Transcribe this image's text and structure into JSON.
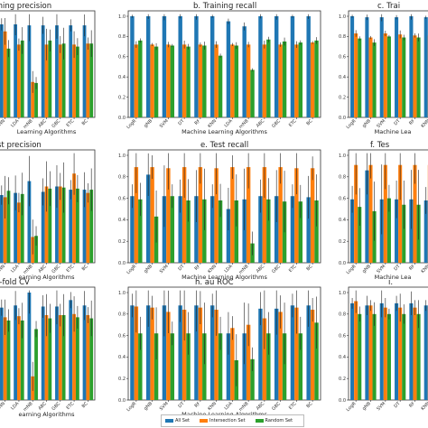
{
  "figure": {
    "colors": {
      "All Set": "#1f77b4",
      "Intersection Set": "#ff7f0e",
      "Random Set": "#2ca02c"
    },
    "legend": [
      "All Set",
      "Intersection Set",
      "Random Set"
    ]
  },
  "chart_data": [
    {
      "type": "bar",
      "title": "aining precision",
      "xlabel": "Learning Algorithms",
      "ylabel": "",
      "categories": [
        "KNN",
        "LDA",
        "mNB",
        "ABC",
        "GBC",
        "ETC",
        "BC"
      ],
      "ylim": [
        0.0,
        1.0
      ],
      "yticks": [],
      "series": [
        {
          "name": "All Set",
          "values": [
            0.92,
            0.92,
            0.91,
            0.91,
            0.91,
            0.91,
            0.91
          ]
        },
        {
          "name": "Intersection Set",
          "values": [
            0.85,
            0.72,
            0.35,
            0.72,
            0.72,
            0.72,
            0.73
          ]
        },
        {
          "name": "Random Set",
          "values": [
            0.68,
            0.76,
            0.34,
            0.76,
            0.73,
            0.7,
            0.73
          ]
        }
      ]
    },
    {
      "type": "bar",
      "title": "b. Training recall",
      "xlabel": "Machine Learning Algorithms",
      "ylabel": "",
      "categories": [
        "LogR",
        "gNB",
        "SVM",
        "DT",
        "RF",
        "KNN",
        "LDA",
        "mNB",
        "ABC",
        "GBC",
        "ETC",
        "BC"
      ],
      "ylim": [
        0.0,
        1.0
      ],
      "yticks": [
        "0.0",
        "0.2",
        "0.4",
        "0.6",
        "0.8",
        "1.0"
      ],
      "series": [
        {
          "name": "All Set",
          "values": [
            1.0,
            1.0,
            1.0,
            1.0,
            1.0,
            1.0,
            0.95,
            0.9,
            1.0,
            1.0,
            1.0,
            1.0
          ]
        },
        {
          "name": "Intersection Set",
          "values": [
            0.72,
            0.72,
            0.72,
            0.72,
            0.72,
            0.72,
            0.72,
            0.72,
            0.72,
            0.72,
            0.72,
            0.74
          ]
        },
        {
          "name": "Random Set",
          "values": [
            0.76,
            0.7,
            0.71,
            0.7,
            0.71,
            0.61,
            0.71,
            0.47,
            0.77,
            0.75,
            0.74,
            0.76
          ]
        }
      ]
    },
    {
      "type": "bar",
      "title": "c. Trai",
      "xlabel": "Machine Lea",
      "ylabel": "",
      "categories": [
        "LogR",
        "gNB",
        "SVM",
        "DT",
        "RF",
        "KNN"
      ],
      "ylim": [
        0.0,
        1.0
      ],
      "yticks": [
        "0.0",
        "0.2",
        "0.4",
        "0.6",
        "0.8",
        "1.0"
      ],
      "series": [
        {
          "name": "All Set",
          "values": [
            1.0,
            0.99,
            0.99,
            0.99,
            1.0,
            0.99
          ]
        },
        {
          "name": "Intersection Set",
          "values": [
            0.83,
            0.79,
            0.83,
            0.82,
            0.81,
            0.81
          ]
        },
        {
          "name": "Random Set",
          "values": [
            0.78,
            0.74,
            0.8,
            0.79,
            0.79,
            0.79
          ]
        }
      ]
    },
    {
      "type": "bar",
      "title": "st precision",
      "xlabel": "earning Algorithms",
      "ylabel": "",
      "categories": [
        "KNN",
        "LDA",
        "mNB",
        "ABC",
        "GBC",
        "ETC",
        "BC"
      ],
      "ylim": [
        0.0,
        1.0
      ],
      "yticks": [],
      "series": [
        {
          "name": "All Set",
          "values": [
            0.63,
            0.65,
            0.76,
            0.66,
            0.71,
            0.68,
            0.68
          ]
        },
        {
          "name": "Intersection Set",
          "values": [
            0.61,
            0.56,
            0.24,
            0.71,
            0.71,
            0.83,
            0.65
          ]
        },
        {
          "name": "Random Set",
          "values": [
            0.67,
            0.64,
            0.25,
            0.69,
            0.7,
            0.69,
            0.68
          ]
        }
      ]
    },
    {
      "type": "bar",
      "title": "e. Test recall",
      "xlabel": "Machine Learning Algorithms",
      "ylabel": "",
      "categories": [
        "LogR",
        "gNB",
        "SVM",
        "DT",
        "RF",
        "KNN",
        "LDA",
        "mNB",
        "ABC",
        "GBC",
        "ETC",
        "BC"
      ],
      "ylim": [
        0.0,
        1.0
      ],
      "yticks": [
        "0.0",
        "0.2",
        "0.4",
        "0.6",
        "0.8",
        "1.0"
      ],
      "series": [
        {
          "name": "All Set",
          "values": [
            0.62,
            0.82,
            0.62,
            0.62,
            0.62,
            0.62,
            0.5,
            0.59,
            0.62,
            0.62,
            0.62,
            0.61
          ]
        },
        {
          "name": "Intersection Set",
          "values": [
            0.89,
            0.89,
            0.88,
            0.89,
            0.89,
            0.88,
            0.89,
            0.89,
            0.89,
            0.89,
            0.88,
            0.88
          ]
        },
        {
          "name": "Random Set",
          "values": [
            0.59,
            0.43,
            0.62,
            0.58,
            0.59,
            0.58,
            0.58,
            0.18,
            0.59,
            0.57,
            0.57,
            0.58
          ]
        }
      ]
    },
    {
      "type": "bar",
      "title": "f. Tes",
      "xlabel": "Machine Lea",
      "ylabel": "",
      "categories": [
        "LogR",
        "gNB",
        "SVM",
        "DT",
        "RF",
        "KNN"
      ],
      "ylim": [
        0.0,
        1.0
      ],
      "yticks": [
        "0.0",
        "0.2",
        "0.4",
        "0.6",
        "0.8",
        "1.0"
      ],
      "series": [
        {
          "name": "All Set",
          "values": [
            0.59,
            0.86,
            0.59,
            0.59,
            0.59,
            0.58
          ]
        },
        {
          "name": "Intersection Set",
          "values": [
            0.91,
            0.91,
            0.91,
            0.91,
            0.91,
            0.91
          ]
        },
        {
          "name": "Random Set",
          "values": [
            0.52,
            0.48,
            0.6,
            0.54,
            0.54,
            0.54
          ]
        }
      ]
    },
    {
      "type": "bar",
      "title": "0-fold CV",
      "xlabel": "earning Algorithms",
      "ylabel": "",
      "categories": [
        "KNN",
        "LDA",
        "mNB",
        "ABC",
        "GBC",
        "ETC",
        "BC"
      ],
      "ylim": [
        0.0,
        1.0
      ],
      "yticks": [],
      "series": [
        {
          "name": "All Set",
          "values": [
            0.86,
            0.88,
            1.0,
            0.87,
            0.87,
            0.93,
            0.88
          ]
        },
        {
          "name": "Intersection Set",
          "values": [
            0.77,
            0.78,
            0.22,
            0.79,
            0.79,
            0.8,
            0.79
          ]
        },
        {
          "name": "Random Set",
          "values": [
            0.74,
            0.74,
            0.66,
            0.76,
            0.79,
            0.77,
            0.76
          ]
        }
      ]
    },
    {
      "type": "bar",
      "title": "h. au ROC",
      "xlabel": "Machine Learning Algorithms",
      "ylabel": "",
      "categories": [
        "LogR",
        "gNB",
        "SVM",
        "DT",
        "RF",
        "KNN",
        "LDA",
        "mNB",
        "ABC",
        "GBC",
        "ETC",
        "BC"
      ],
      "ylim": [
        0.0,
        1.0
      ],
      "yticks": [
        "0.0",
        "0.2",
        "0.4",
        "0.6",
        "0.8",
        "1.0"
      ],
      "series": [
        {
          "name": "All Set",
          "values": [
            0.88,
            0.88,
            0.88,
            0.88,
            0.88,
            0.88,
            0.62,
            0.62,
            0.85,
            0.85,
            0.88,
            0.88
          ]
        },
        {
          "name": "Intersection Set",
          "values": [
            0.87,
            0.86,
            0.82,
            0.84,
            0.86,
            0.84,
            0.67,
            0.7,
            0.76,
            0.82,
            0.86,
            0.84
          ]
        },
        {
          "name": "Random Set",
          "values": [
            0.62,
            0.62,
            0.62,
            0.62,
            0.62,
            0.62,
            0.37,
            0.38,
            0.62,
            0.62,
            0.62,
            0.72
          ]
        }
      ]
    },
    {
      "type": "bar",
      "title": "i.",
      "xlabel": "",
      "ylabel": "",
      "categories": [
        "LogR",
        "gNB",
        "SVM",
        "DT",
        "RF",
        "KNN"
      ],
      "ylim": [
        0.0,
        1.0
      ],
      "yticks": [
        "0.0",
        "0.2",
        "0.4",
        "0.6",
        "0.8",
        "1.0"
      ],
      "series": [
        {
          "name": "All Set",
          "values": [
            0.9,
            0.88,
            0.9,
            0.9,
            0.9,
            0.88
          ]
        },
        {
          "name": "Intersection Set",
          "values": [
            0.92,
            0.88,
            0.86,
            0.86,
            0.86,
            0.87
          ]
        },
        {
          "name": "Random Set",
          "values": [
            0.8,
            0.8,
            0.8,
            0.8,
            0.8,
            0.8
          ]
        }
      ]
    }
  ]
}
